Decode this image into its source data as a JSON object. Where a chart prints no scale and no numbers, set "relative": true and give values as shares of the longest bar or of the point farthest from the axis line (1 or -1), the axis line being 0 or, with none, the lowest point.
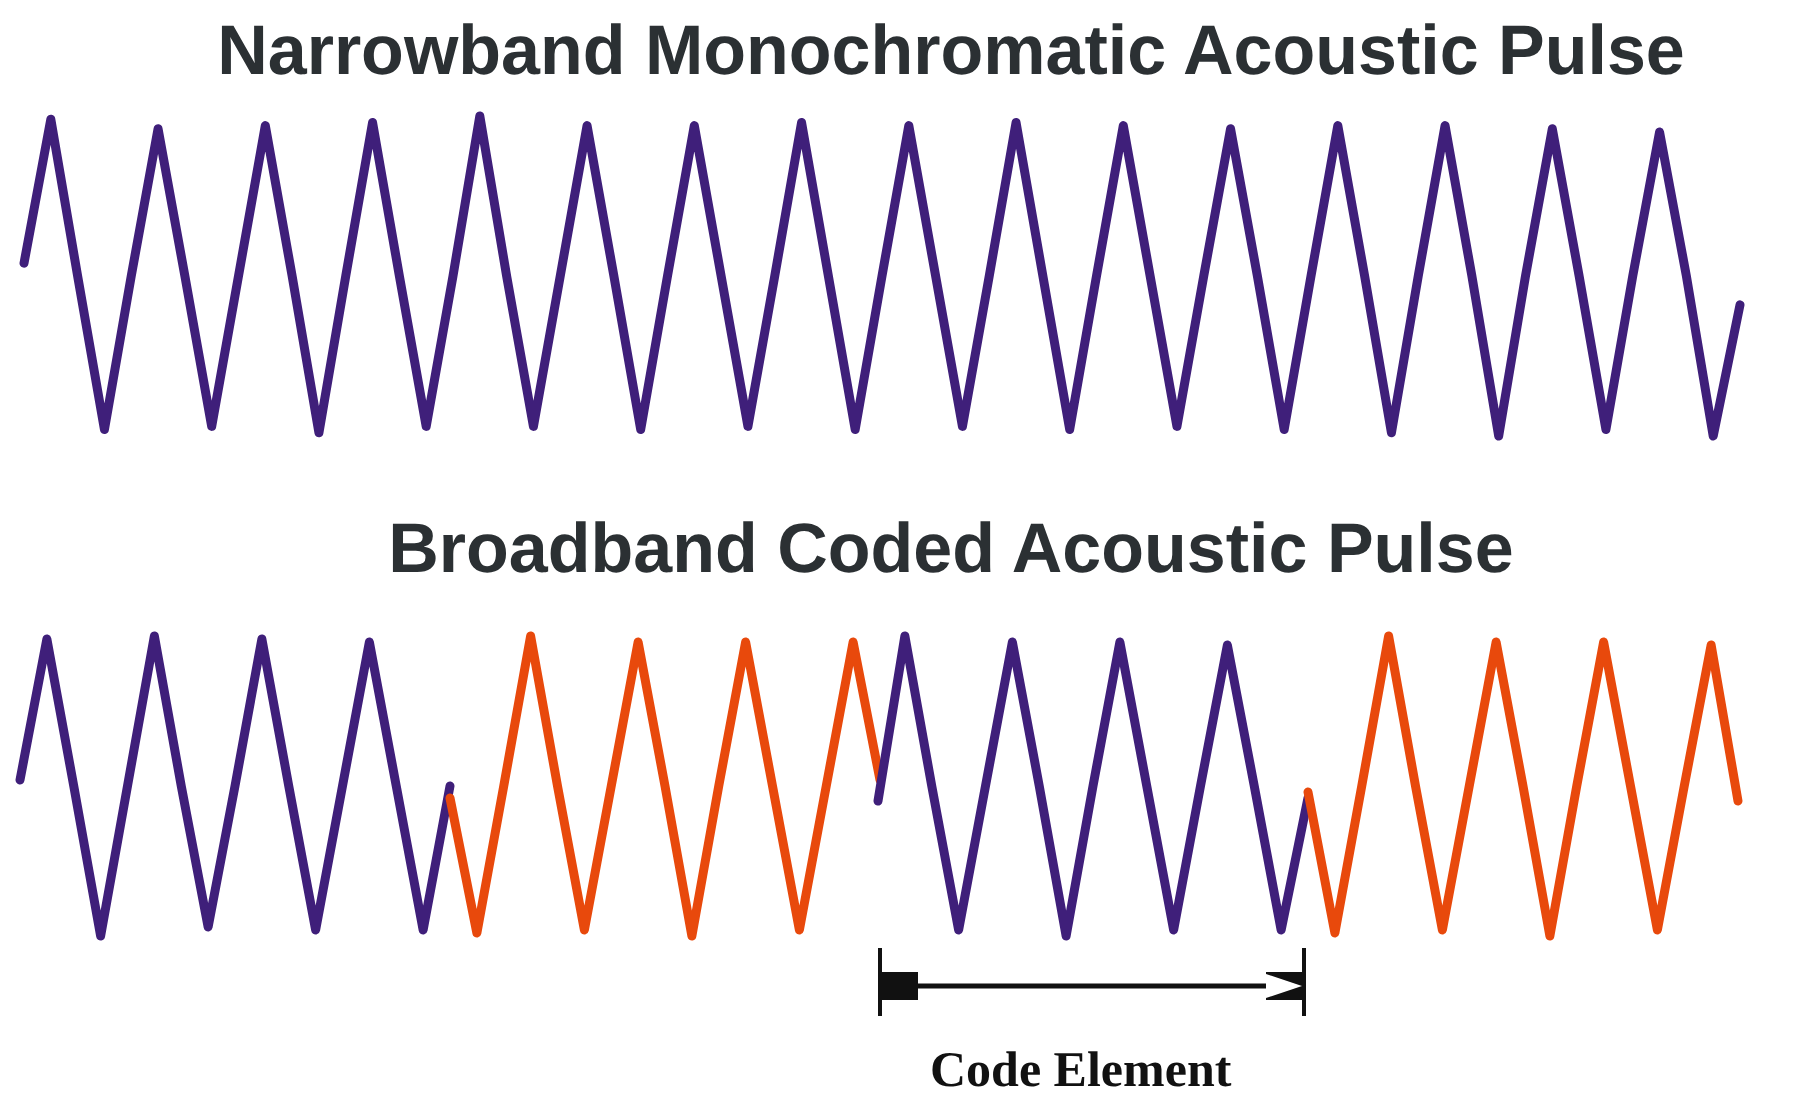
{
  "chart_data": [
    {
      "type": "line",
      "title": "Narrowband Monochromatic Acoustic Pulse",
      "relative": true,
      "marker": "none",
      "categories": [
        null,
        null,
        null,
        null,
        null,
        null,
        null,
        null,
        null,
        null,
        null,
        null,
        null,
        null,
        null,
        null,
        null,
        null,
        null,
        null,
        null,
        null,
        null,
        null,
        null,
        null,
        null,
        null,
        null,
        null,
        null,
        null,
        null,
        null,
        null,
        null,
        null,
        null,
        null,
        null,
        null,
        null,
        null,
        null,
        null,
        null,
        null,
        null,
        null,
        null,
        null,
        null,
        null,
        null,
        null,
        null,
        null,
        null,
        null,
        null,
        null,
        null,
        null,
        null,
        null
      ],
      "series": [
        {
          "color": "#3f1f7a",
          "values": [
            0.54,
            0.99,
            0.5,
            0.02,
            0.5,
            0.96,
            0.5,
            0.03,
            0.5,
            0.97,
            0.5,
            0.01,
            0.5,
            0.98,
            0.5,
            0.03,
            0.5,
            1,
            0.5,
            0.03,
            0.5,
            0.97,
            0.5,
            0.02,
            0.5,
            0.97,
            0.5,
            0.03,
            0.5,
            0.98,
            0.5,
            0.02,
            0.5,
            0.97,
            0.5,
            0.03,
            0.5,
            0.98,
            0.5,
            0.02,
            0.5,
            0.97,
            0.5,
            0.03,
            0.5,
            0.96,
            0.5,
            0.02,
            0.5,
            0.97,
            0.5,
            0.01,
            0.5,
            0.97,
            0.5,
            0,
            0.5,
            0.96,
            0.5,
            0.02,
            0.5,
            0.95,
            0.5,
            0,
            0.41
          ]
        }
      ]
    },
    {
      "type": "line",
      "relative": true,
      "marker": "none",
      "categories": [
        null,
        null,
        null,
        null,
        null,
        null,
        null,
        null,
        null,
        null,
        null,
        null,
        null,
        null,
        null,
        null,
        null
      ],
      "series": [
        {
          "color": "#3f1f7a",
          "values": [
            0.52,
            0.99,
            0.5,
            0,
            0.5,
            1,
            0.5,
            0.03,
            0.5,
            0.99,
            0.5,
            0.02,
            0.5,
            0.98,
            0.5,
            0.02,
            0.5
          ]
        }
      ]
    },
    {
      "type": "line",
      "relative": true,
      "marker": "none",
      "categories": [
        null,
        null,
        null,
        null,
        null,
        null,
        null,
        null,
        null,
        null,
        null,
        null,
        null,
        null,
        null,
        null,
        null
      ],
      "series": [
        {
          "color": "#e8490c",
          "values": [
            0.46,
            0.01,
            0.5,
            1,
            0.5,
            0.02,
            0.5,
            0.98,
            0.5,
            0,
            0.5,
            0.98,
            0.5,
            0.02,
            0.5,
            0.98,
            0.52
          ]
        }
      ]
    },
    {
      "type": "line",
      "title": "Broadband Coded Acoustic Pulse",
      "relative": true,
      "marker": "none",
      "annotations": [
        "Code Element"
      ],
      "categories": [
        null,
        null,
        null,
        null,
        null,
        null,
        null,
        null,
        null,
        null,
        null,
        null,
        null,
        null,
        null,
        null,
        null
      ],
      "series": [
        {
          "color": "#3f1f7a",
          "values": [
            0.45,
            1,
            0.5,
            0.02,
            0.5,
            0.98,
            0.5,
            0,
            0.5,
            0.98,
            0.5,
            0.02,
            0.5,
            0.97,
            0.5,
            0.02,
            0.46
          ]
        }
      ]
    },
    {
      "type": "line",
      "relative": true,
      "marker": "none",
      "categories": [
        null,
        null,
        null,
        null,
        null,
        null,
        null,
        null,
        null,
        null,
        null,
        null,
        null,
        null,
        null,
        null,
        null
      ],
      "series": [
        {
          "color": "#e8490c",
          "values": [
            0.48,
            0.01,
            0.5,
            1,
            0.5,
            0.02,
            0.5,
            0.98,
            0.5,
            0,
            0.5,
            0.98,
            0.5,
            0.02,
            0.5,
            0.97,
            0.45
          ]
        }
      ]
    }
  ]
}
